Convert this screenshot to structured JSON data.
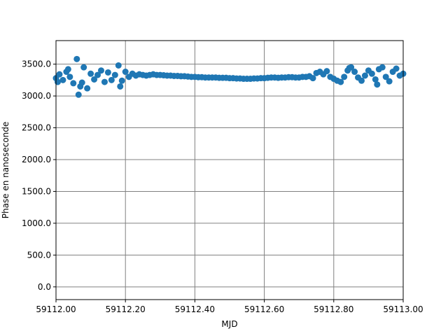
{
  "chart_data": {
    "type": "scatter",
    "xlabel": "MJD",
    "ylabel": "Phase en nanoseconde",
    "color": "#1f77b4",
    "grid": true,
    "xlim": [
      59112.0,
      59113.0
    ],
    "xticks": [
      {
        "value": 59112.0,
        "label": "59112.00"
      },
      {
        "value": 59112.2,
        "label": "59112.20"
      },
      {
        "value": 59112.4,
        "label": "59112.40"
      },
      {
        "value": 59112.6,
        "label": "59112.60"
      },
      {
        "value": 59112.8,
        "label": "59112.80"
      },
      {
        "value": 59113.0,
        "label": "59113.00"
      }
    ],
    "ylim": [
      -200,
      3870
    ],
    "yticks": [
      {
        "value": 0,
        "label": "0.0"
      },
      {
        "value": 500,
        "label": "500.0"
      },
      {
        "value": 1000,
        "label": "1000.0"
      },
      {
        "value": 1500,
        "label": "1500.0"
      },
      {
        "value": 2000,
        "label": "2000.0"
      },
      {
        "value": 2500,
        "label": "2500.0"
      },
      {
        "value": 3000,
        "label": "3000.0"
      },
      {
        "value": 3500,
        "label": "3500.0"
      }
    ],
    "x": [
      59112.0,
      59112.01,
      59112.02,
      59112.03,
      59112.04,
      59112.05,
      59112.06,
      59112.07,
      59112.08,
      59112.09,
      59112.1,
      59112.11,
      59112.12,
      59112.13,
      59112.14,
      59112.15,
      59112.16,
      59112.17,
      59112.18,
      59112.19,
      59112.2,
      59112.21,
      59112.22,
      59112.23,
      59112.24,
      59112.25,
      59112.26,
      59112.27,
      59112.28,
      59112.29,
      59112.3,
      59112.31,
      59112.32,
      59112.33,
      59112.34,
      59112.35,
      59112.36,
      59112.37,
      59112.38,
      59112.39,
      59112.4,
      59112.41,
      59112.42,
      59112.43,
      59112.44,
      59112.45,
      59112.46,
      59112.47,
      59112.48,
      59112.49,
      59112.5,
      59112.51,
      59112.52,
      59112.53,
      59112.54,
      59112.55,
      59112.56,
      59112.57,
      59112.58,
      59112.59,
      59112.6,
      59112.61,
      59112.62,
      59112.63,
      59112.64,
      59112.65,
      59112.66,
      59112.67,
      59112.68,
      59112.69,
      59112.7,
      59112.71,
      59112.72,
      59112.73,
      59112.74,
      59112.75,
      59112.76,
      59112.77,
      59112.78,
      59112.79,
      59112.8,
      59112.81,
      59112.82,
      59112.83,
      59112.84,
      59112.85,
      59112.86,
      59112.87,
      59112.88,
      59112.89,
      59112.9,
      59112.91,
      59112.92,
      59112.93,
      59112.94,
      59112.95,
      59112.96,
      59112.97,
      59112.98,
      59112.99,
      59113.0,
      59112.065,
      59112.005,
      59112.035,
      59112.075,
      59112.185,
      59112.845,
      59112.925
    ],
    "values": [
      3280,
      3340,
      3250,
      3380,
      3300,
      3200,
      3580,
      3150,
      3450,
      3120,
      3350,
      3260,
      3330,
      3400,
      3220,
      3370,
      3250,
      3330,
      3480,
      3240,
      3380,
      3300,
      3350,
      3320,
      3340,
      3330,
      3320,
      3330,
      3340,
      3330,
      3330,
      3325,
      3320,
      3320,
      3315,
      3315,
      3310,
      3310,
      3305,
      3300,
      3300,
      3295,
      3295,
      3290,
      3290,
      3290,
      3290,
      3285,
      3285,
      3285,
      3280,
      3280,
      3275,
      3275,
      3270,
      3270,
      3270,
      3275,
      3275,
      3280,
      3280,
      3285,
      3290,
      3290,
      3285,
      3290,
      3290,
      3295,
      3295,
      3290,
      3290,
      3300,
      3300,
      3310,
      3280,
      3360,
      3380,
      3340,
      3390,
      3300,
      3270,
      3240,
      3220,
      3300,
      3400,
      3450,
      3380,
      3290,
      3240,
      3320,
      3400,
      3350,
      3260,
      3420,
      3450,
      3300,
      3230,
      3380,
      3430,
      3320,
      3350,
      3020,
      3220,
      3420,
      3210,
      3150,
      3440,
      3180
    ]
  }
}
